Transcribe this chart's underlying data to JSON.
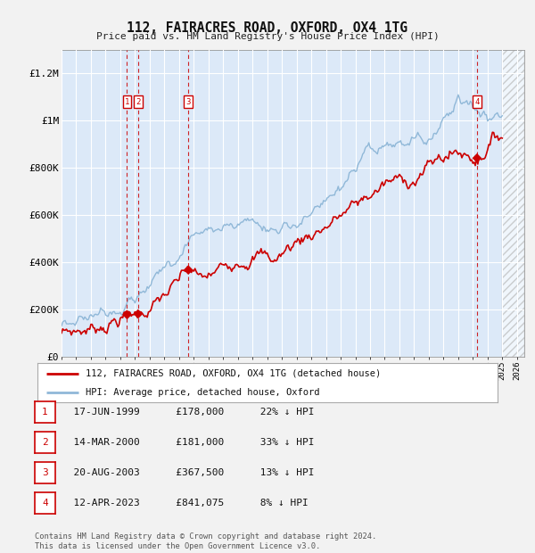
{
  "title": "112, FAIRACRES ROAD, OXFORD, OX4 1TG",
  "subtitle": "Price paid vs. HM Land Registry's House Price Index (HPI)",
  "footer": "Contains HM Land Registry data © Crown copyright and database right 2024.\nThis data is licensed under the Open Government Licence v3.0.",
  "legend_line1": "112, FAIRACRES ROAD, OXFORD, OX4 1TG (detached house)",
  "legend_line2": "HPI: Average price, detached house, Oxford",
  "transactions": [
    {
      "num": 1,
      "date": "17-JUN-1999",
      "price": 178000,
      "pct": "22%",
      "dir": "↓",
      "x_year": 1999.46
    },
    {
      "num": 2,
      "date": "14-MAR-2000",
      "price": 181000,
      "pct": "33%",
      "dir": "↓",
      "x_year": 2000.21
    },
    {
      "num": 3,
      "date": "20-AUG-2003",
      "price": 367500,
      "pct": "13%",
      "dir": "↓",
      "x_year": 2003.63
    },
    {
      "num": 4,
      "date": "12-APR-2023",
      "price": 841075,
      "pct": "8%",
      "dir": "↓",
      "x_year": 2023.28
    }
  ],
  "ylim": [
    0,
    1300000
  ],
  "xlim": [
    1995.0,
    2026.5
  ],
  "hatch_start": 2025.0,
  "bg_color": "#dce9f8",
  "grid_color": "#ffffff",
  "hpi_color": "#90b8d8",
  "prop_color": "#cc0000",
  "box_color": "#cc0000",
  "fig_bg": "#f2f2f2"
}
